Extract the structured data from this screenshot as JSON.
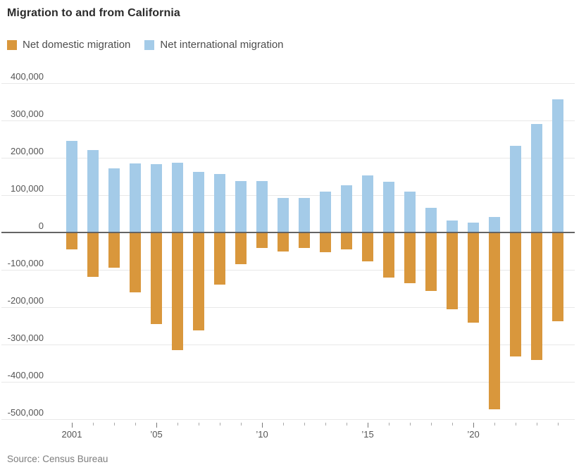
{
  "title": "Migration to and from California",
  "source_note": "Source: Census Bureau",
  "colors": {
    "domestic_orange": "#d9973c",
    "international_blue": "#a4cbe8",
    "gridline": "#e8e8e8",
    "zero_line": "#646464",
    "axis_text": "#555555",
    "title_text": "#2b2b2b",
    "legend_text": "#4d4d4d",
    "source_text": "#7d7d7d"
  },
  "legend": {
    "items": [
      {
        "label": "Net domestic migration",
        "color": "#d9973c",
        "series_key": "domestic"
      },
      {
        "label": "Net international migration",
        "color": "#a4cbe8",
        "series_key": "international"
      }
    ]
  },
  "y_axis": {
    "tick_labels": [
      "400,000",
      "300,000",
      "200,000",
      "100,000",
      "0",
      "-100,000",
      "-200,000",
      "-300,000",
      "-400,000",
      "-500,000"
    ],
    "tick_values": [
      400000,
      300000,
      200000,
      100000,
      0,
      -100000,
      -200000,
      -300000,
      -400000,
      -500000
    ]
  },
  "x_axis": {
    "labeled_years": [
      {
        "year": 2001,
        "label": "2001"
      },
      {
        "year": 2005,
        "label": "’05"
      },
      {
        "year": 2010,
        "label": "’10"
      },
      {
        "year": 2015,
        "label": "’15"
      },
      {
        "year": 2020,
        "label": "’20"
      }
    ]
  },
  "chart_data": {
    "type": "bar",
    "title": "Migration to and from California",
    "xlabel": "",
    "ylabel": "",
    "ylim": [
      -500000,
      400000
    ],
    "grid": true,
    "legend_position": "top",
    "categories": [
      2001,
      2002,
      2003,
      2004,
      2005,
      2006,
      2007,
      2008,
      2009,
      2010,
      2011,
      2012,
      2013,
      2014,
      2015,
      2016,
      2017,
      2018,
      2019,
      2020,
      2021,
      2022,
      2023,
      2024
    ],
    "series": [
      {
        "name": "Net domestic migration",
        "color": "#d9973c",
        "values": [
          -45000,
          -118000,
          -95000,
          -160000,
          -245000,
          -315000,
          -262000,
          -140000,
          -85000,
          -42000,
          -50000,
          -42000,
          -52000,
          -45000,
          -78000,
          -120000,
          -136000,
          -156000,
          -206000,
          -242000,
          -473000,
          -332000,
          -342000,
          -237000
        ]
      },
      {
        "name": "Net international migration",
        "color": "#a4cbe8",
        "values": [
          245000,
          220000,
          172000,
          185000,
          183000,
          187000,
          162000,
          156000,
          137000,
          137000,
          93000,
          93000,
          110000,
          127000,
          152000,
          135000,
          109000,
          66000,
          33000,
          27000,
          42000,
          233000,
          290000,
          357000
        ]
      }
    ]
  }
}
